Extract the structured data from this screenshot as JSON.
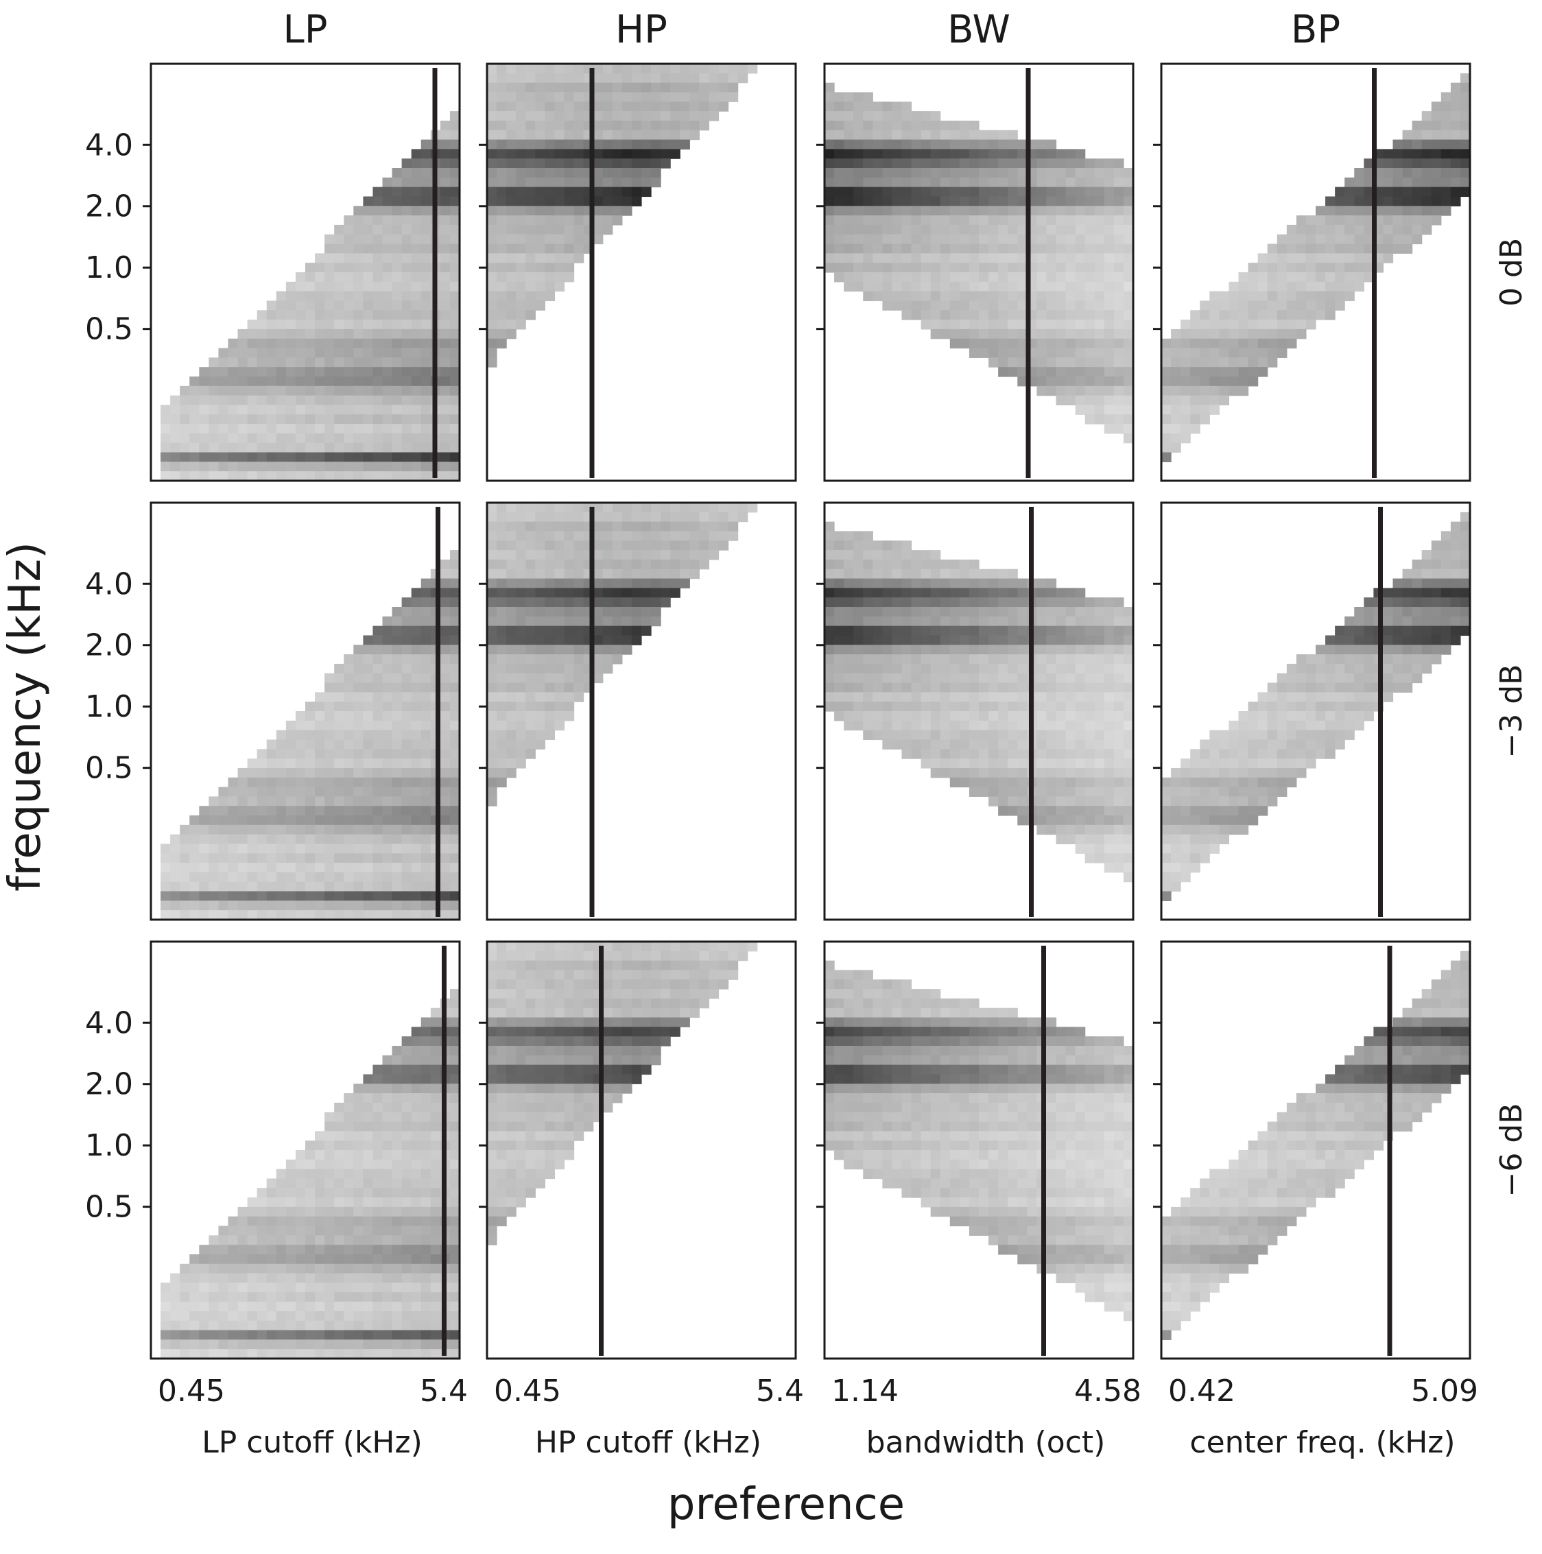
{
  "figure": {
    "xlabel": "preference",
    "ylabel": "frequency (kHz)"
  },
  "chart_data": {
    "type": "heatmap",
    "columns": [
      {
        "title": "LP",
        "xlabel": "LP cutoff (kHz)",
        "xtick_labels": [
          "0.45",
          "5.4"
        ]
      },
      {
        "title": "HP",
        "xlabel": "HP cutoff (kHz)",
        "xtick_labels": [
          "0.45",
          "5.4"
        ]
      },
      {
        "title": "BW",
        "xlabel": "bandwidth (oct)",
        "xtick_labels": [
          "1.14",
          "4.58"
        ]
      },
      {
        "title": "BP",
        "xlabel": "center freq. (kHz)",
        "xtick_labels": [
          "0.42",
          "5.09"
        ]
      }
    ],
    "rows": [
      {
        "label": "0 dB"
      },
      {
        "label": "−3 dB"
      },
      {
        "label": "−6 dB"
      }
    ],
    "ytick_labels": [
      "4.0",
      "2.0",
      "1.0",
      "0.5"
    ],
    "ytick_values": [
      4.0,
      2.0,
      1.0,
      0.5
    ],
    "ylim_khz": [
      0.09,
      10.0
    ],
    "y_scale": "log",
    "grid": false,
    "preferred_value_markers": [
      [
        0.92,
        0.34,
        0.66,
        0.69
      ],
      [
        0.93,
        0.34,
        0.67,
        0.71
      ],
      [
        0.95,
        0.37,
        0.71,
        0.74
      ]
    ],
    "bright_bands": [
      {
        "frequency_khz": 0.4,
        "relative_level": 0.35
      },
      {
        "frequency_khz": 0.28,
        "relative_level": 0.55
      },
      {
        "frequency_khz": 0.11,
        "relative_level": 1.0
      },
      {
        "frequency_khz": 2.3,
        "relative_level": 0.85
      },
      {
        "frequency_khz": 3.6,
        "relative_level": 0.8
      }
    ]
  }
}
